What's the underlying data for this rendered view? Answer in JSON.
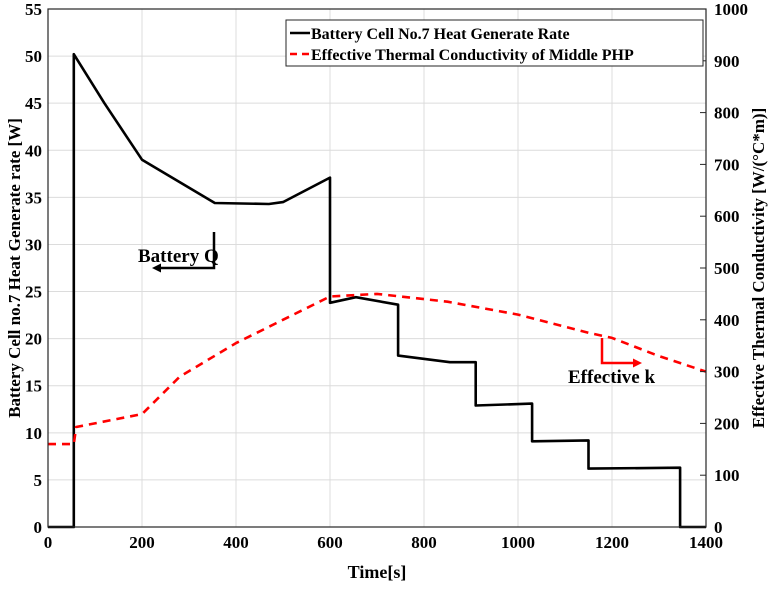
{
  "chart_data": {
    "type": "line",
    "xlabel": "Time[s]",
    "ylabel_left": "Battery Cell no.7 Heat Generate rate  [W]",
    "ylabel_right": "Effective Thermal Conductivity  [W/(°C*m)]",
    "xlim": [
      0,
      1400
    ],
    "ylim_left": [
      0,
      55
    ],
    "ylim_right": [
      0,
      1000
    ],
    "x_ticks": [
      "0",
      "200",
      "400",
      "600",
      "800",
      "1000",
      "1200",
      "1400"
    ],
    "y_ticks_left": [
      "0",
      "5",
      "10",
      "15",
      "20",
      "25",
      "30",
      "35",
      "40",
      "45",
      "50",
      "55"
    ],
    "y_ticks_right": [
      "0",
      "100",
      "200",
      "300",
      "400",
      "500",
      "600",
      "700",
      "800",
      "900",
      "1000"
    ],
    "grid": true,
    "legend_position": "top-right",
    "series": [
      {
        "name": "Battery Cell No.7 Heat Generate Rate",
        "axis": "left",
        "color": "#000000",
        "style": "solid",
        "x": [
          0,
          55,
          55,
          120,
          200,
          355,
          470,
          500,
          600,
          600,
          655,
          745,
          745,
          855,
          910,
          910,
          1030,
          1030,
          1150,
          1150,
          1345,
          1345,
          1400
        ],
        "y": [
          0,
          0,
          50.2,
          45,
          39,
          34.4,
          34.3,
          34.5,
          37.1,
          23.8,
          24.4,
          23.6,
          18.2,
          17.5,
          17.5,
          12.9,
          13.1,
          9.1,
          9.2,
          6.2,
          6.3,
          0,
          0
        ]
      },
      {
        "name": "Effective Thermal Conductivity of Middle PHP",
        "axis": "right",
        "color": "#ff0000",
        "style": "dashed",
        "x": [
          0,
          55,
          60,
          200,
          280,
          400,
          600,
          700,
          850,
          1000,
          1150,
          1200,
          1300,
          1400
        ],
        "y": [
          160,
          160,
          193,
          218,
          290,
          355,
          445,
          450,
          435,
          410,
          375,
          365,
          330,
          300
        ]
      }
    ],
    "annotations": [
      {
        "text": "Battery Q",
        "color": "#000000"
      },
      {
        "text": "Effective k",
        "color": "#ff0000"
      }
    ]
  }
}
